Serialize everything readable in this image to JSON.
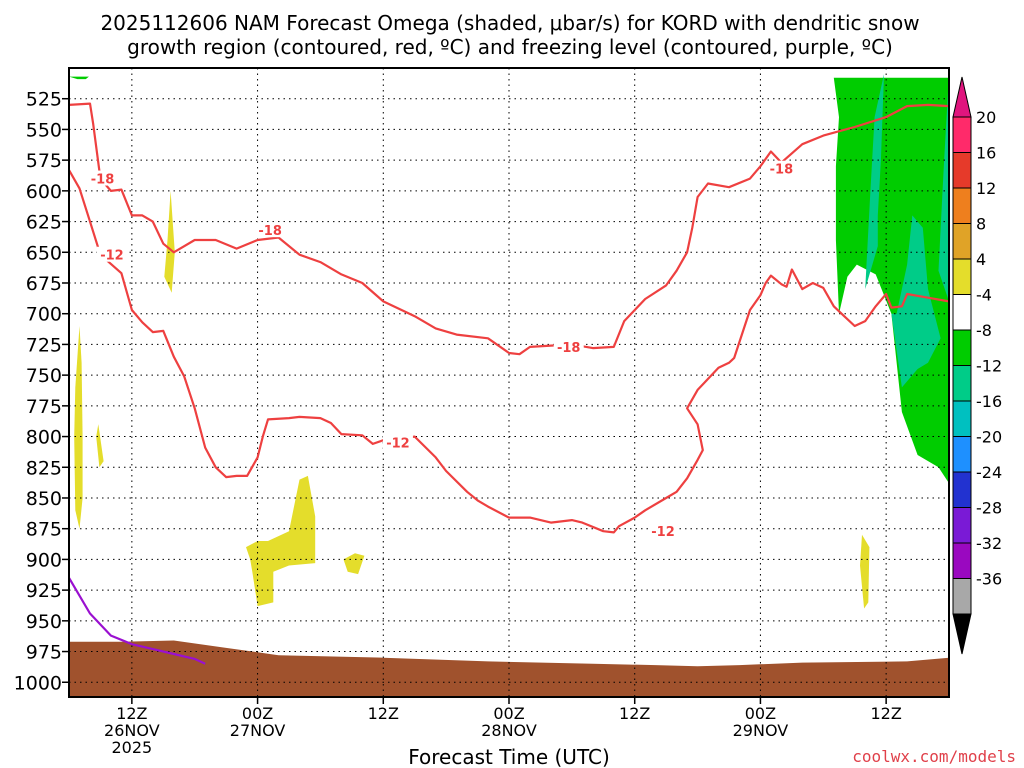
{
  "chart_data": {
    "type": "heatmap",
    "title_line1": "2025112606 NAM Forecast Omega (shaded, μbar/s) for KORD with dendritic snow",
    "title_line2": "growth region (contoured, red, ºC) and freezing level (contoured, purple, ºC)",
    "xlabel": "Forecast Time (UTC)",
    "credit": "coolwx.com/models",
    "x_range_hours": [
      0,
      84
    ],
    "x_ticks": [
      {
        "hour": 6,
        "label1": "12Z",
        "label2": "26NOV",
        "label3": "2025"
      },
      {
        "hour": 18,
        "label1": "00Z",
        "label2": "27NOV",
        "label3": ""
      },
      {
        "hour": 30,
        "label1": "12Z",
        "label2": "",
        "label3": ""
      },
      {
        "hour": 42,
        "label1": "00Z",
        "label2": "28NOV",
        "label3": ""
      },
      {
        "hour": 54,
        "label1": "12Z",
        "label2": "",
        "label3": ""
      },
      {
        "hour": 66,
        "label1": "00Z",
        "label2": "29NOV",
        "label3": ""
      },
      {
        "hour": 78,
        "label1": "12Z",
        "label2": "",
        "label3": ""
      }
    ],
    "y_range_hpa": [
      1012,
      500
    ],
    "y_ticks": [
      "525",
      "550",
      "575",
      "600",
      "625",
      "650",
      "675",
      "700",
      "725",
      "750",
      "775",
      "800",
      "825",
      "850",
      "875",
      "900",
      "925",
      "950",
      "975",
      "1000"
    ],
    "colorbar": {
      "labels": [
        "20",
        "16",
        "12",
        "8",
        "4",
        "-4",
        "-8",
        "-12",
        "-16",
        "-20",
        "-24",
        "-28",
        "-32",
        "-36"
      ],
      "colors": [
        "#ff2a6a",
        "#e63a2a",
        "#ee7f1e",
        "#e0a327",
        "#e4dd2b",
        "#ffffff",
        "#00cc00",
        "#00cc88",
        "#00c0c0",
        "#1e90ff",
        "#2232d0",
        "#7a1ad6",
        "#9a08c0",
        "#a8a8a8"
      ],
      "top_arrow_color": "#e0157e",
      "bottom_arrow_color": "#000000"
    },
    "contour_labels": [
      {
        "text": "-18",
        "hour": 3.2,
        "hpa": 590
      },
      {
        "text": "-12",
        "hour": 4.1,
        "hpa": 652
      },
      {
        "text": "-18",
        "hour": 19.2,
        "hpa": 632
      },
      {
        "text": "-12",
        "hour": 31.4,
        "hpa": 805
      },
      {
        "text": "-18",
        "hour": 47.7,
        "hpa": 727
      },
      {
        "text": "-12",
        "hour": 56.7,
        "hpa": 877
      },
      {
        "text": "-18",
        "hour": 68.0,
        "hpa": 582
      }
    ],
    "contour_18": [
      [
        0,
        530
      ],
      [
        2,
        529
      ],
      [
        2.3,
        545
      ],
      [
        3,
        590
      ],
      [
        4,
        600
      ],
      [
        5,
        599
      ],
      [
        6,
        620
      ],
      [
        7,
        620
      ],
      [
        8,
        625
      ],
      [
        9,
        643
      ],
      [
        10,
        650
      ],
      [
        12,
        640
      ],
      [
        14,
        640
      ],
      [
        16,
        647
      ],
      [
        18,
        640
      ],
      [
        20,
        638
      ],
      [
        22,
        652
      ],
      [
        24,
        658
      ],
      [
        26,
        668
      ],
      [
        28,
        675
      ],
      [
        30,
        690
      ],
      [
        32,
        698
      ],
      [
        33,
        702
      ],
      [
        35,
        712
      ],
      [
        37,
        717
      ],
      [
        40,
        720
      ],
      [
        42,
        732
      ],
      [
        43,
        733
      ],
      [
        44,
        727
      ],
      [
        46,
        726
      ],
      [
        48,
        725
      ],
      [
        50,
        728
      ],
      [
        52,
        727
      ],
      [
        53,
        706
      ],
      [
        55,
        688
      ],
      [
        57,
        677
      ],
      [
        58,
        665
      ],
      [
        59,
        650
      ],
      [
        59.5,
        630
      ],
      [
        60,
        605
      ],
      [
        61,
        594
      ],
      [
        63,
        597
      ],
      [
        65,
        590
      ],
      [
        66,
        580
      ],
      [
        67,
        568
      ],
      [
        68,
        577
      ],
      [
        70,
        562
      ],
      [
        72,
        555
      ],
      [
        75,
        548
      ],
      [
        78,
        540
      ],
      [
        80,
        531
      ],
      [
        82,
        530
      ],
      [
        84,
        531
      ]
    ],
    "contour_12": [
      [
        0,
        583
      ],
      [
        1,
        598
      ],
      [
        2,
        625
      ],
      [
        3,
        652
      ],
      [
        5,
        667
      ],
      [
        6,
        697
      ],
      [
        7,
        707
      ],
      [
        8,
        715
      ],
      [
        9,
        714
      ],
      [
        10,
        735
      ],
      [
        11,
        751
      ],
      [
        12,
        777
      ],
      [
        13,
        809
      ],
      [
        14,
        825
      ],
      [
        15,
        833
      ],
      [
        16,
        832
      ],
      [
        17,
        832
      ],
      [
        18,
        817
      ],
      [
        18.5,
        800
      ],
      [
        19,
        786
      ],
      [
        21,
        785
      ],
      [
        22,
        784
      ],
      [
        24,
        785
      ],
      [
        25,
        789
      ],
      [
        26,
        798
      ],
      [
        28,
        799
      ],
      [
        29,
        806
      ],
      [
        30,
        803
      ],
      [
        33,
        800
      ],
      [
        35,
        817
      ],
      [
        36,
        828
      ],
      [
        38,
        845
      ],
      [
        39,
        852
      ],
      [
        40,
        857
      ],
      [
        42,
        866
      ],
      [
        44,
        866
      ],
      [
        46,
        870
      ],
      [
        48,
        868
      ],
      [
        49,
        870
      ],
      [
        51,
        877
      ],
      [
        52,
        878
      ],
      [
        52.5,
        873
      ],
      [
        54,
        866
      ],
      [
        55,
        860
      ],
      [
        57,
        850
      ],
      [
        58,
        845
      ],
      [
        59,
        834
      ],
      [
        60,
        819
      ],
      [
        60.5,
        811
      ],
      [
        60,
        790
      ],
      [
        59,
        777
      ],
      [
        60,
        762
      ],
      [
        62,
        744
      ],
      [
        63,
        740
      ],
      [
        63.5,
        736
      ],
      [
        64.5,
        710
      ],
      [
        65,
        697
      ],
      [
        66,
        685
      ],
      [
        66.5,
        675
      ],
      [
        67,
        669
      ],
      [
        68,
        676
      ],
      [
        68.5,
        678
      ],
      [
        69,
        664
      ],
      [
        70,
        680
      ],
      [
        71,
        675
      ],
      [
        72,
        679
      ],
      [
        73,
        694
      ],
      [
        74,
        702
      ],
      [
        75,
        710
      ],
      [
        76,
        706
      ],
      [
        77,
        694
      ],
      [
        78,
        684
      ],
      [
        78.5,
        695
      ],
      [
        79.5,
        694
      ],
      [
        80,
        684
      ],
      [
        82,
        687
      ],
      [
        84,
        690
      ]
    ],
    "contour_freeze": [
      [
        0,
        915
      ],
      [
        2,
        944
      ],
      [
        4,
        962
      ],
      [
        6,
        969
      ],
      [
        8,
        973
      ],
      [
        10,
        977
      ],
      [
        12,
        981
      ],
      [
        13,
        985
      ]
    ],
    "omega_shapes": [
      {
        "color": "#00cc00",
        "pts": [
          [
            73.5,
            700
          ],
          [
            74.3,
            670
          ],
          [
            75.2,
            660
          ],
          [
            77,
            668
          ],
          [
            78.5,
            700
          ],
          [
            79.5,
            780
          ],
          [
            81,
            815
          ],
          [
            83,
            825
          ],
          [
            84,
            838
          ],
          [
            84,
            508
          ],
          [
            73,
            508
          ],
          [
            73.5,
            540
          ],
          [
            73.2,
            580
          ],
          [
            73.2,
            640
          ]
        ]
      },
      {
        "color": "#00cc00",
        "pts": [
          [
            0,
            507
          ],
          [
            0.8,
            509
          ],
          [
            1.6,
            509
          ],
          [
            1.9,
            507
          ]
        ]
      },
      {
        "color": "#00cc88",
        "pts": [
          [
            76,
            680
          ],
          [
            76.5,
            600
          ],
          [
            76.9,
            540
          ],
          [
            77.8,
            505
          ],
          [
            77.5,
            575
          ],
          [
            77.2,
            620
          ],
          [
            77.2,
            645
          ]
        ]
      },
      {
        "color": "#00cc88",
        "pts": [
          [
            79,
            700
          ],
          [
            80,
            660
          ],
          [
            80.5,
            620
          ],
          [
            81.5,
            630
          ],
          [
            82,
            680
          ],
          [
            83.2,
            720
          ],
          [
            82,
            740
          ],
          [
            81,
            745
          ],
          [
            79.5,
            760
          ],
          [
            78.5,
            700
          ]
        ]
      },
      {
        "color": "#00cc88",
        "pts": [
          [
            84,
            505
          ],
          [
            83.5,
            580
          ],
          [
            83,
            665
          ],
          [
            84,
            690
          ]
        ]
      },
      {
        "color": "#e4dd2b",
        "pts": [
          [
            1,
            710
          ],
          [
            1.2,
            740
          ],
          [
            1.3,
            800
          ],
          [
            1.3,
            850
          ],
          [
            1.0,
            875
          ],
          [
            0.6,
            860
          ],
          [
            0.5,
            800
          ],
          [
            0.6,
            760
          ]
        ]
      },
      {
        "color": "#e4dd2b",
        "pts": [
          [
            2.8,
            790
          ],
          [
            3.3,
            820
          ],
          [
            2.9,
            825
          ],
          [
            2.6,
            800
          ]
        ]
      },
      {
        "color": "#e4dd2b",
        "pts": [
          [
            9.7,
            600
          ],
          [
            10.1,
            650
          ],
          [
            9.8,
            683
          ],
          [
            9.1,
            670
          ],
          [
            9.4,
            640
          ]
        ]
      },
      {
        "color": "#e4dd2b",
        "pts": [
          [
            16.9,
            890
          ],
          [
            18,
            885
          ],
          [
            19,
            885
          ],
          [
            21,
            877
          ],
          [
            22,
            835
          ],
          [
            22.8,
            832
          ],
          [
            23.5,
            865
          ],
          [
            23.5,
            903
          ],
          [
            21,
            905
          ],
          [
            19.5,
            910
          ],
          [
            19.5,
            935
          ],
          [
            18,
            938
          ],
          [
            17.5,
            910
          ],
          [
            17.3,
            900
          ]
        ]
      },
      {
        "color": "#e4dd2b",
        "pts": [
          [
            26.2,
            900
          ],
          [
            27.3,
            895
          ],
          [
            28.2,
            897
          ],
          [
            27.6,
            912
          ],
          [
            26.6,
            910
          ]
        ]
      },
      {
        "color": "#e4dd2b",
        "pts": [
          [
            75.7,
            880
          ],
          [
            76.4,
            890
          ],
          [
            76.3,
            935
          ],
          [
            75.9,
            940
          ],
          [
            75.5,
            905
          ]
        ]
      },
      {
        "color": "#a0522d",
        "pts": [
          [
            0,
            967
          ],
          [
            5,
            967
          ],
          [
            10,
            966
          ],
          [
            15,
            972
          ],
          [
            20,
            978
          ],
          [
            30,
            980
          ],
          [
            40,
            983
          ],
          [
            50,
            985
          ],
          [
            56,
            986
          ],
          [
            60,
            987
          ],
          [
            64,
            986
          ],
          [
            70,
            984
          ],
          [
            80,
            983
          ],
          [
            84,
            980
          ],
          [
            84,
            1012
          ],
          [
            0,
            1012
          ]
        ]
      }
    ]
  }
}
